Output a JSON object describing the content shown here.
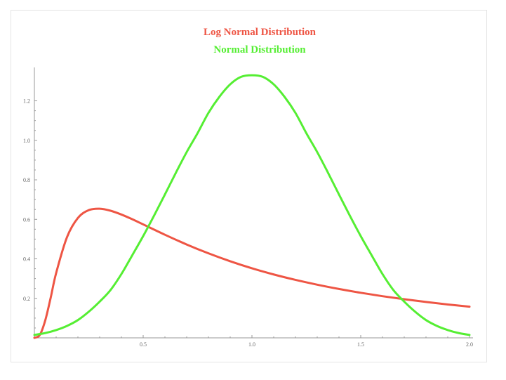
{
  "chart_data": {
    "type": "line",
    "title": "",
    "xlabel": "",
    "ylabel": "",
    "xlim": [
      0,
      2.0
    ],
    "ylim": [
      0,
      1.33
    ],
    "grid": false,
    "legend_position": "top-center",
    "x_ticks": [
      "0.5",
      "1.0",
      "1.5",
      "2.0"
    ],
    "y_ticks": [
      "0.2",
      "0.4",
      "0.6",
      "0.8",
      "1.0",
      "1.2"
    ],
    "series": [
      {
        "name": "Log Normal Distribution",
        "color": "#ee5544",
        "x": [
          0.0,
          0.025,
          0.05,
          0.075,
          0.1,
          0.15,
          0.2,
          0.25,
          0.3,
          0.35,
          0.4,
          0.45,
          0.5,
          0.6,
          0.7,
          0.8,
          0.9,
          1.0,
          1.1,
          1.2,
          1.3,
          1.4,
          1.5,
          1.6,
          1.7,
          1.8,
          1.9,
          2.0
        ],
        "y": [
          0.0,
          0.0149,
          0.0888,
          0.2036,
          0.3282,
          0.5099,
          0.6068,
          0.6467,
          0.6539,
          0.6437,
          0.6244,
          0.6005,
          0.5745,
          0.5221,
          0.4727,
          0.428,
          0.3878,
          0.3521,
          0.3209,
          0.2935,
          0.2692,
          0.2475,
          0.2282,
          0.211,
          0.1956,
          0.1817,
          0.1691,
          0.1577
        ]
      },
      {
        "name": "Normal Distribution",
        "color": "#55ee33",
        "x": [
          0.0,
          0.05,
          0.1,
          0.15,
          0.2,
          0.25,
          0.3,
          0.35,
          0.4,
          0.45,
          0.5,
          0.55,
          0.6,
          0.65,
          0.7,
          0.75,
          0.8,
          0.85,
          0.9,
          0.95,
          1.0,
          1.05,
          1.1,
          1.15,
          1.2,
          1.25,
          1.3,
          1.35,
          1.4,
          1.45,
          1.5,
          1.55,
          1.6,
          1.65,
          1.7,
          1.75,
          1.8,
          1.85,
          1.9,
          1.95,
          2.0
        ],
        "y": [
          0.0148,
          0.0244,
          0.0395,
          0.0606,
          0.09,
          0.1324,
          0.1834,
          0.2422,
          0.3231,
          0.4185,
          0.5153,
          0.6187,
          0.726,
          0.8352,
          0.9404,
          1.0362,
          1.139,
          1.22,
          1.2836,
          1.3215,
          1.3295,
          1.3215,
          1.2836,
          1.22,
          1.139,
          1.0362,
          0.9404,
          0.8352,
          0.726,
          0.6187,
          0.5153,
          0.4185,
          0.3231,
          0.2422,
          0.1834,
          0.1324,
          0.09,
          0.0606,
          0.0395,
          0.0244,
          0.0148
        ]
      }
    ]
  }
}
